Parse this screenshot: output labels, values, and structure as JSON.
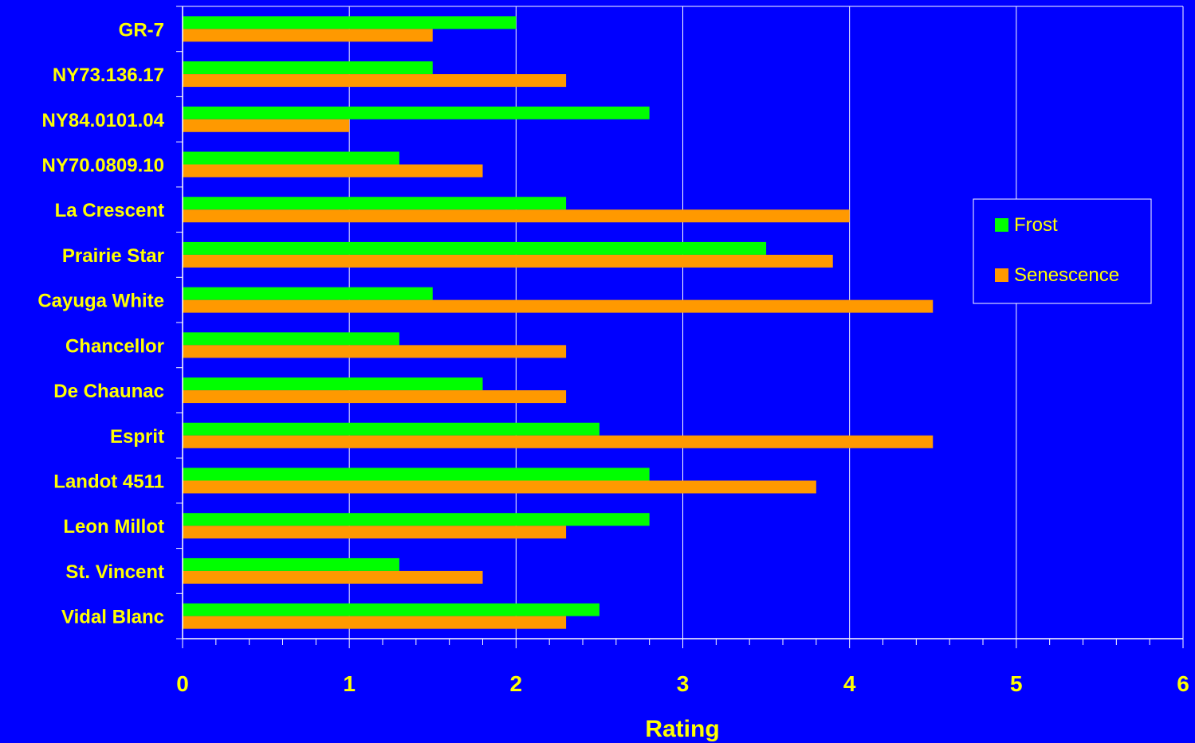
{
  "chart_data": {
    "type": "bar",
    "orientation": "horizontal",
    "categories": [
      "GR-7",
      "NY73.136.17",
      "NY84.0101.04",
      "NY70.0809.10",
      "La Crescent",
      "Prairie Star",
      "Cayuga White",
      "Chancellor",
      "De Chaunac",
      "Esprit",
      "Landot 4511",
      "Leon Millot",
      "St. Vincent",
      "Vidal Blanc"
    ],
    "series": [
      {
        "name": "Frost",
        "color": "#00FF00",
        "values": [
          2.0,
          1.5,
          2.8,
          1.3,
          2.3,
          3.5,
          1.5,
          1.3,
          1.8,
          2.5,
          2.8,
          2.8,
          1.3,
          2.5
        ]
      },
      {
        "name": "Senescence",
        "color": "#FF9900",
        "values": [
          1.5,
          2.3,
          1.0,
          1.8,
          4.0,
          3.9,
          4.5,
          2.3,
          2.3,
          4.5,
          3.8,
          2.3,
          1.8,
          2.3
        ]
      }
    ],
    "xlabel": "Rating",
    "xlim": [
      0,
      6
    ],
    "xticks": [
      "0",
      "1",
      "2",
      "3",
      "4",
      "5",
      "6"
    ],
    "grid": "vertical",
    "legend_position": "right",
    "colors": {
      "background": "#0000FF",
      "text": "#FFFF00",
      "axis": "#FFFFFF"
    }
  }
}
